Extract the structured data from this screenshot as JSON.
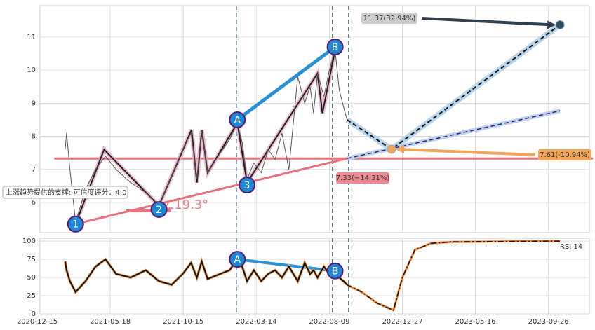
{
  "chart_data": [
    {
      "type": "line",
      "ylim": [
        5.09,
        11.95
      ],
      "yticks": [
        6,
        7,
        8,
        9,
        10,
        11
      ],
      "grid": true,
      "series": [
        {
          "color": "#555555",
          "x": [
            "2021-02-12",
            "2021-02-15",
            "2021-02-22",
            "2021-03-06",
            "2021-03-27",
            "2021-04-17",
            "2021-05-08",
            "2021-05-30",
            "2021-06-29",
            "2021-07-30",
            "2021-08-26",
            "2021-09-21",
            "2021-10-14",
            "2021-10-31",
            "2021-11-12",
            "2021-11-22",
            "2021-12-04",
            "2021-12-30",
            "2022-01-18",
            "2022-02-03",
            "2022-02-13",
            "2022-02-23",
            "2022-03-09",
            "2022-03-24",
            "2022-04-07",
            "2022-04-21",
            "2022-05-05",
            "2022-05-19",
            "2022-06-06",
            "2022-06-20",
            "2022-07-01",
            "2022-07-08",
            "2022-07-16",
            "2022-07-29",
            "2022-08-09",
            "2022-08-20",
            "2022-08-28",
            "2022-09-05",
            "2022-09-12"
          ],
          "values": [
            7.6,
            8.1,
            7.0,
            5.4,
            6.4,
            7.0,
            7.4,
            7.0,
            6.6,
            6.3,
            5.9,
            6.8,
            7.6,
            8.1,
            6.7,
            8.2,
            6.9,
            7.5,
            7.9,
            8.4,
            7.8,
            6.7,
            7.2,
            6.9,
            7.6,
            7.3,
            8.1,
            7.0,
            9.8,
            9.0,
            9.5,
            8.7,
            9.9,
            9.2,
            10.0,
            10.6,
            9.4,
            8.9,
            8.5
          ]
        }
      ],
      "zigzag": {
        "color": "#222222",
        "x": [
          "2021-03-06",
          "2021-05-05",
          "2021-08-26",
          "2021-11-01",
          "2021-11-12",
          "2021-11-22",
          "2021-12-04",
          "2022-02-03",
          "2022-02-23",
          "2022-07-16",
          "2022-07-26",
          "2022-08-20"
        ],
        "values": [
          5.35,
          7.6,
          5.9,
          8.2,
          6.6,
          8.2,
          6.9,
          8.4,
          6.6,
          9.9,
          8.7,
          10.6
        ]
      },
      "lines": [
        {
          "color": "#e8707c",
          "x": [
            "2021-01-20",
            "2023-12-16"
          ],
          "values": [
            7.33,
            7.33
          ]
        },
        {
          "color": "#e8707c",
          "x": [
            "2021-03-06",
            "2022-09-12"
          ],
          "values": [
            5.35,
            7.33
          ]
        },
        {
          "color": "#2a8fd4",
          "x": [
            "2022-02-03",
            "2022-08-20"
          ],
          "values": [
            8.5,
            10.7
          ]
        },
        {
          "color": "#f07080",
          "x": [
            "2021-06-20",
            "2021-09-20"
          ],
          "values": [
            5.75,
            5.75
          ]
        }
      ],
      "forecast": {
        "x": [
          "2022-09-12",
          "2022-12-06",
          "2023-10-17"
        ],
        "values": [
          8.5,
          7.61,
          11.37
        ]
      },
      "trend": {
        "x": [
          "2022-09-12",
          "2023-10-17"
        ],
        "values": [
          7.33,
          8.77
        ]
      },
      "waves": [
        {
          "label": "1",
          "x": "2021-03-06",
          "y": 5.35
        },
        {
          "label": "2",
          "x": "2021-08-26",
          "y": 5.79
        },
        {
          "label": "3",
          "x": "2022-02-23",
          "y": 6.53
        },
        {
          "label": "A",
          "x": "2022-02-03",
          "y": 8.5
        },
        {
          "label": "B",
          "x": "2022-08-20",
          "y": 10.7
        }
      ],
      "vlines": [
        "2022-02-01",
        "2022-08-15",
        "2022-09-15"
      ],
      "annotations": [
        {
          "text": "11.37(32.94%)",
          "x": "2023-10-17",
          "value": 11.37
        },
        {
          "text": "7.61(-10.94%)",
          "x": "2022-12-06",
          "value": 7.61
        },
        {
          "text": "7.33(−14.31%)",
          "x": "2022-09-12",
          "value": 7.33
        }
      ],
      "support_text": "上涨趋势提供的支撑: 可信度评分：4.0",
      "angle_text": "∠19.3°"
    },
    {
      "type": "line",
      "ylim": [
        0,
        104
      ],
      "yticks": [
        0,
        25,
        50,
        75,
        100
      ],
      "grid": true,
      "xticks": [
        "2020-12-15",
        "2021-05-18",
        "2021-10-15",
        "2022-03-14",
        "2022-08-09",
        "2022-12-27",
        "2023-05-16",
        "2023-09-26"
      ],
      "series": [
        {
          "name": "RSI 14",
          "color": "#111111",
          "x": [
            "2021-02-12",
            "2021-02-15",
            "2021-02-22",
            "2021-03-06",
            "2021-03-27",
            "2021-04-17",
            "2021-05-08",
            "2021-05-30",
            "2021-06-29",
            "2021-07-30",
            "2021-08-26",
            "2021-09-21",
            "2021-10-14",
            "2021-10-31",
            "2021-11-12",
            "2021-11-22",
            "2021-12-04",
            "2021-12-30",
            "2022-01-18",
            "2022-02-03",
            "2022-02-13",
            "2022-02-23",
            "2022-03-09",
            "2022-03-24",
            "2022-04-07",
            "2022-04-21",
            "2022-05-05",
            "2022-05-19",
            "2022-06-06",
            "2022-06-20",
            "2022-07-01",
            "2022-07-08",
            "2022-07-16",
            "2022-07-29",
            "2022-08-09",
            "2022-08-20",
            "2022-08-28",
            "2022-09-05",
            "2022-09-12"
          ],
          "values": [
            72,
            60,
            45,
            30,
            45,
            65,
            75,
            55,
            50,
            60,
            45,
            40,
            55,
            70,
            50,
            72,
            48,
            55,
            60,
            75,
            65,
            45,
            60,
            45,
            55,
            60,
            50,
            65,
            45,
            70,
            55,
            60,
            50,
            65,
            55,
            60,
            50,
            45,
            40
          ]
        },
        {
          "color": "#f08030",
          "x": [
            "2022-09-12",
            "2022-10-10",
            "2022-11-08",
            "2022-12-10",
            "2022-12-27",
            "2023-01-20",
            "2023-02-20",
            "2023-04-01",
            "2023-09-26",
            "2023-10-17"
          ],
          "values": [
            40,
            30,
            15,
            5,
            50,
            88,
            97,
            99,
            100,
            100
          ]
        }
      ],
      "waves": [
        {
          "label": "A",
          "x": "2022-02-03",
          "y": 75
        },
        {
          "label": "B",
          "x": "2022-08-20",
          "y": 59
        }
      ]
    }
  ]
}
